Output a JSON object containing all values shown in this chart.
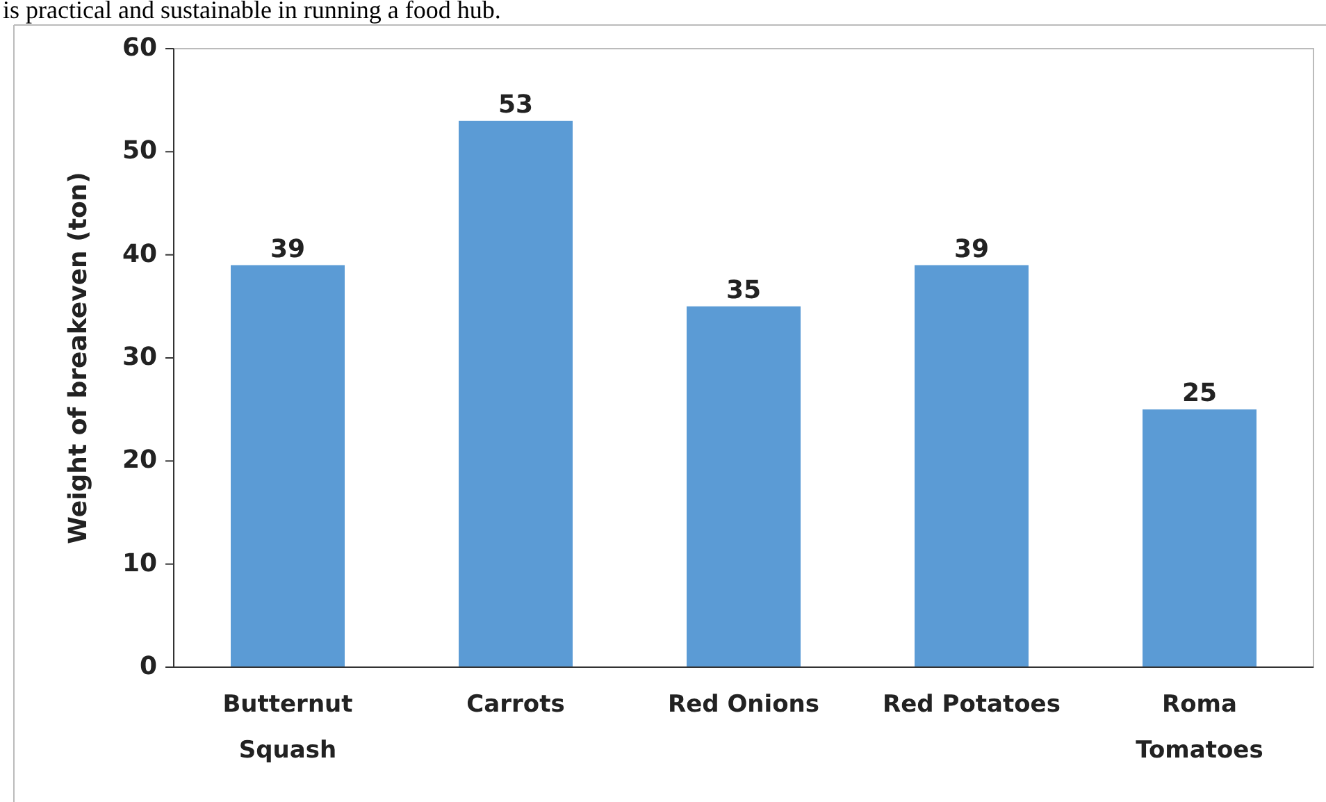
{
  "chart_data": {
    "type": "bar",
    "ylabel": "Weight of breakeven (ton)",
    "categories": [
      "Butternut Squash",
      "Carrots",
      "Red Onions",
      "Red Potatoes",
      "Roma Tomatoes"
    ],
    "values": [
      39,
      53,
      35,
      39,
      25
    ],
    "color": "#5b9bd5",
    "ylim": [
      0,
      60
    ],
    "yticks": [
      0,
      10,
      20,
      30,
      40,
      50,
      60
    ],
    "grid": false,
    "data_labels": true,
    "annotations": [
      "is practical and sustainable in running a food hub."
    ]
  }
}
